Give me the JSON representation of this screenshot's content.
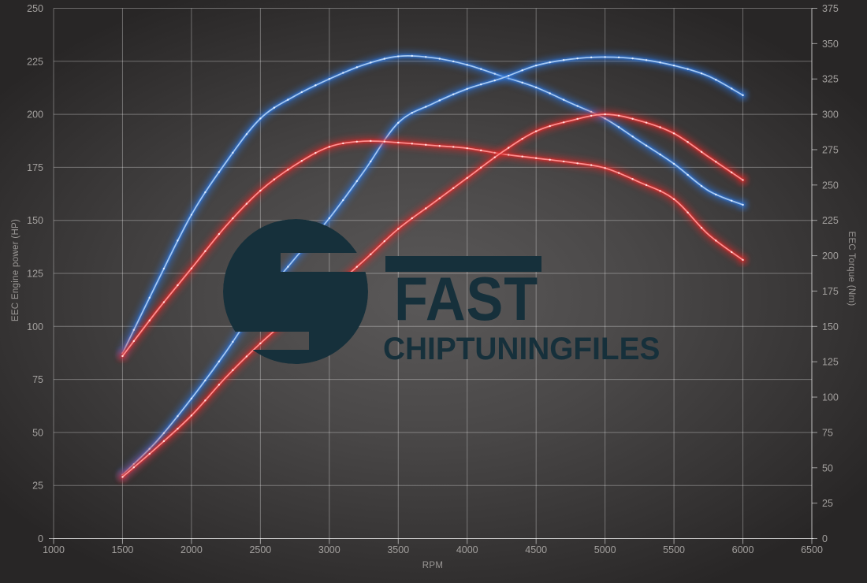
{
  "chart_data": {
    "type": "line",
    "title": "",
    "legend": false,
    "grid": true,
    "x_axis": {
      "label": "RPM",
      "min": 1000,
      "max": 6500,
      "tick_step": 500,
      "ticks": [
        1000,
        1500,
        2000,
        2500,
        3000,
        3500,
        4000,
        4500,
        5000,
        5500,
        6000,
        6500
      ]
    },
    "y_left": {
      "label": "EEC Engine power (HP)",
      "min": 0,
      "max": 250,
      "tick_step": 25,
      "ticks": [
        0,
        25,
        50,
        75,
        100,
        125,
        150,
        175,
        200,
        225,
        250
      ]
    },
    "y_right": {
      "label": "EEC Torque (Nm)",
      "min": 0,
      "max": 375,
      "tick_step": 25,
      "ticks": [
        0,
        25,
        50,
        75,
        100,
        125,
        150,
        175,
        200,
        225,
        250,
        275,
        300,
        325,
        350,
        375
      ]
    },
    "rpm": [
      1500,
      1750,
      2000,
      2250,
      2500,
      2750,
      3000,
      3250,
      3500,
      3750,
      4000,
      4250,
      4500,
      4750,
      5000,
      5250,
      5500,
      5750,
      6000
    ],
    "series": [
      {
        "id": "torque-blue",
        "axis": "right",
        "unit": "Nm",
        "glow": "#2f74d8",
        "core": "#a6c9f2",
        "dot": "#e0edff",
        "values": [
          131,
          181,
          229,
          266,
          297,
          313,
          325,
          335,
          341,
          340,
          335,
          327,
          319,
          308,
          297,
          281,
          265,
          246,
          236
        ]
      },
      {
        "id": "power-blue",
        "axis": "left",
        "unit": "HP",
        "glow": "#2f74d8",
        "core": "#a6c9f2",
        "dot": "#e0edff",
        "values": [
          30,
          46,
          66,
          88,
          112,
          132,
          151,
          173,
          196,
          205,
          212,
          217,
          223,
          226,
          227,
          226,
          223,
          218,
          209
        ]
      },
      {
        "id": "torque-red",
        "axis": "right",
        "unit": "Nm",
        "glow": "#d92c2c",
        "core": "#ff9191",
        "dot": "#ffdddd",
        "values": [
          129,
          161,
          191,
          221,
          246,
          264,
          277,
          281,
          280,
          278,
          276,
          272,
          269,
          266,
          262,
          252,
          240,
          215,
          197
        ]
      },
      {
        "id": "power-red",
        "axis": "left",
        "unit": "HP",
        "glow": "#d92c2c",
        "core": "#ff9191",
        "dot": "#ffdddd",
        "values": [
          29,
          43,
          58,
          76,
          92,
          106,
          117,
          131,
          146,
          158,
          170,
          182,
          192,
          197,
          200,
          197,
          191,
          180,
          169
        ]
      }
    ]
  },
  "watermark": {
    "brand": "FAST",
    "sub": "CHIPTUNINGFILES",
    "logo_color": "#16303b"
  },
  "colors": {
    "grid": "rgba(255,255,255,0.32)",
    "spine": "rgba(255,255,255,0.55)",
    "tick_label": "#a3a09e",
    "background_center": "#5b5959",
    "background_edge": "#282626"
  }
}
